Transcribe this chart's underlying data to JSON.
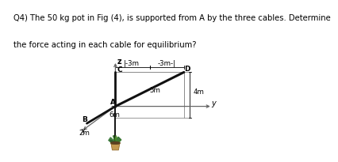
{
  "title_line1": "Q4) The 50 kg pot in Fig (4), is supported from A by the three cables. Determine",
  "title_line2": "the force acting in each cable for equilibrium?",
  "title_fontsize": 7.2,
  "bg_color": "#ffffff",
  "cable_color": "#111111",
  "axis_color": "#666666",
  "dim_line_color": "#888888",
  "label_fontsize": 6.5,
  "dim_fontsize": 6.2
}
